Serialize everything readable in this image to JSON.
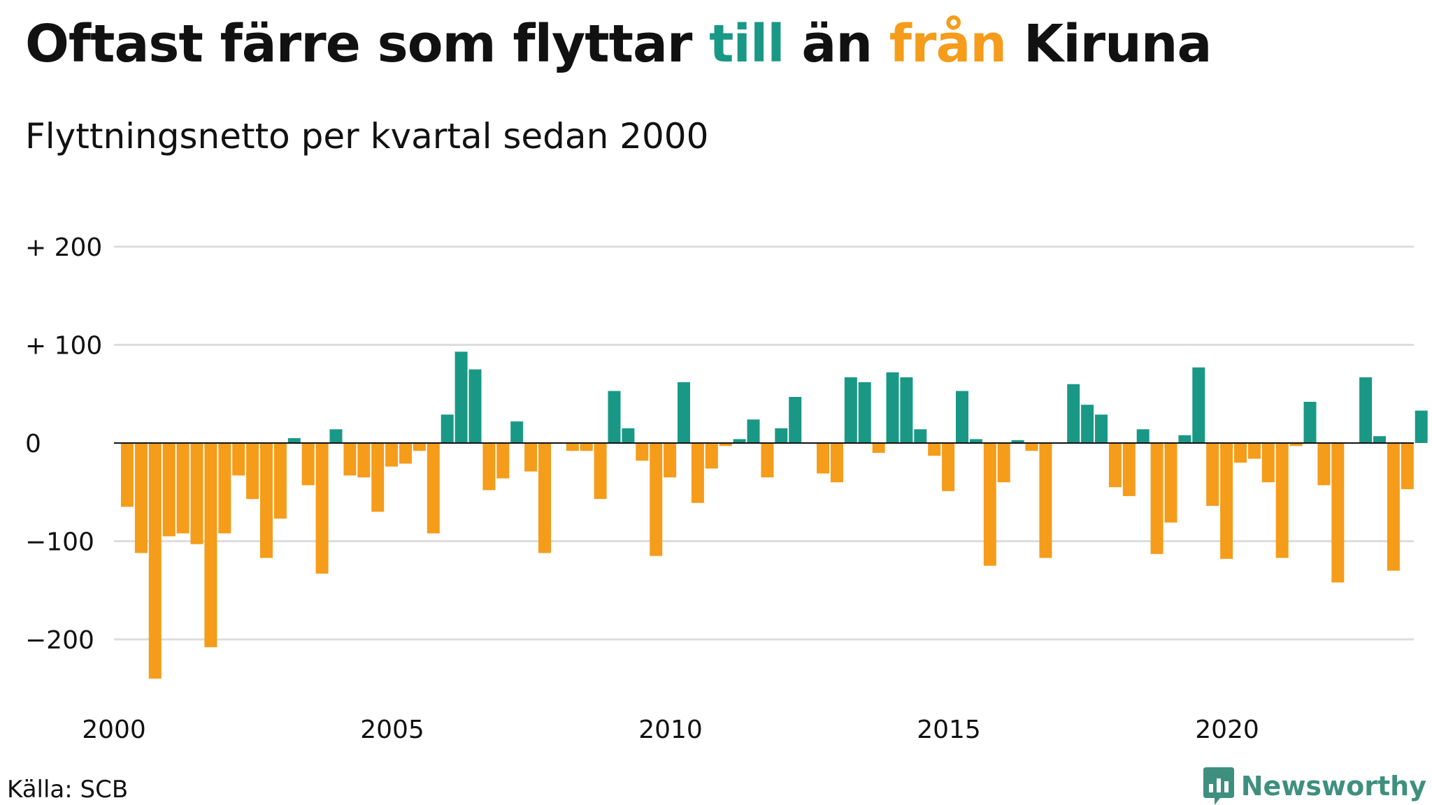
{
  "header": {
    "title_part1": "Oftast färre som flyttar ",
    "title_till": "till",
    "title_part2": " än ",
    "title_fran": "från",
    "title_part3": " Kiruna",
    "subtitle": "Flyttningsnetto per kvartal sedan 2000"
  },
  "footer": {
    "source": "Källa: SCB",
    "brand": "Newsworthy"
  },
  "colors": {
    "positive": "#1a9886",
    "negative": "#f59c1a",
    "brand": "#3f8f7f",
    "grid": "#dddddd"
  },
  "chart_data": {
    "type": "bar",
    "x_start": "2000 Q1",
    "x_end": "2023 Q2",
    "x_ticks": [
      "2000",
      "2005",
      "2010",
      "2015",
      "2020"
    ],
    "y_ticks": [
      "+ 200",
      "+ 100",
      "0",
      "−100",
      "−200"
    ],
    "y_tick_values": [
      200,
      100,
      0,
      -100,
      -200
    ],
    "ylim": [
      -240,
      200
    ],
    "grid": true,
    "values": [
      -65,
      -112,
      -240,
      -95,
      -92,
      -103,
      -208,
      -92,
      -33,
      -57,
      -117,
      -77,
      5,
      -43,
      -133,
      14,
      -33,
      -35,
      -70,
      -24,
      -21,
      -8,
      -92,
      29,
      93,
      75,
      -48,
      -36,
      22,
      -29,
      -112,
      0,
      -8,
      -8,
      -57,
      53,
      15,
      -18,
      -115,
      -35,
      62,
      -61,
      -26,
      -3,
      4,
      24,
      -35,
      15,
      47,
      0,
      -31,
      -40,
      67,
      62,
      -10,
      72,
      67,
      14,
      -13,
      -49,
      53,
      4,
      -125,
      -40,
      3,
      -8,
      -117,
      0,
      60,
      39,
      29,
      -45,
      -54,
      14,
      -113,
      -81,
      8,
      77,
      -64,
      -118,
      -20,
      -16,
      -40,
      -117,
      -3,
      42,
      -43,
      -142,
      0,
      67,
      7,
      -130,
      -47,
      33
    ]
  }
}
